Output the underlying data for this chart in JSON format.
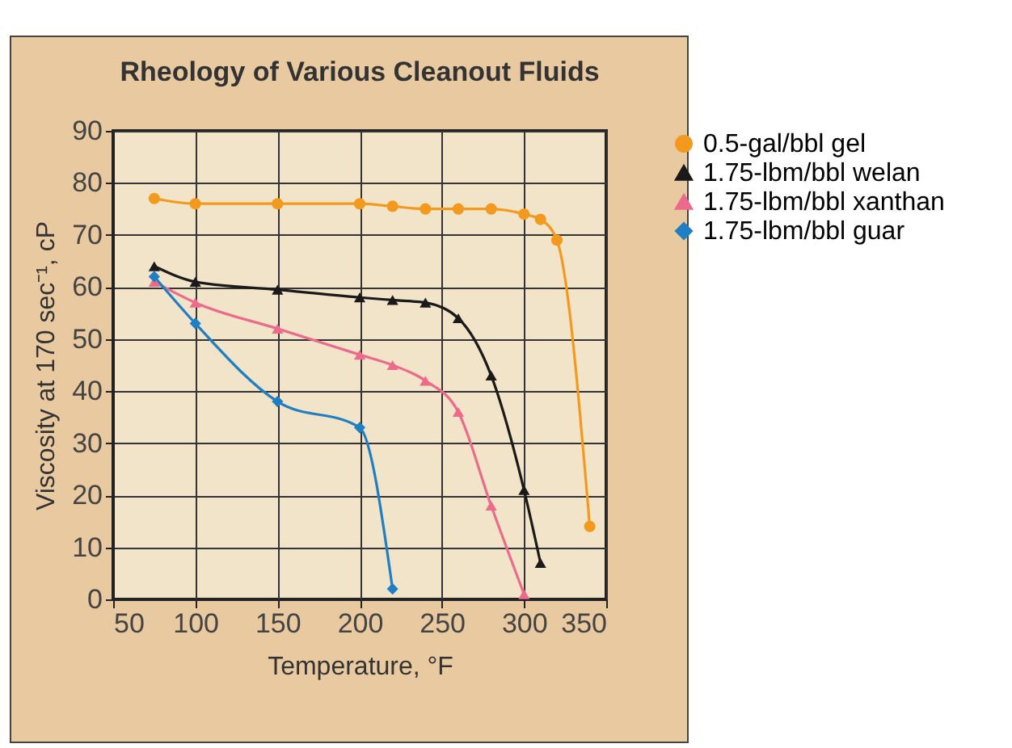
{
  "chart_data": {
    "type": "line",
    "title": "Rheology of Various Cleanout Fluids",
    "xlabel": "Temperature, °F",
    "ylabel": "Viscosity at 170 sec⁻¹, cP",
    "xlim": [
      50,
      350
    ],
    "xticks": [
      50,
      100,
      150,
      200,
      250,
      300,
      350
    ],
    "ylim": [
      0,
      90
    ],
    "yticks": [
      0,
      10,
      20,
      30,
      40,
      50,
      60,
      70,
      80,
      90
    ],
    "grid": true,
    "legend": "right",
    "series": [
      {
        "name": "0.5-gal/bbl gel",
        "color": "#f39a1e",
        "marker": "circle",
        "x": [
          75,
          100,
          150,
          200,
          220,
          240,
          260,
          280,
          300,
          310,
          320,
          340
        ],
        "values": [
          77,
          76,
          76,
          76,
          75.5,
          75,
          75,
          75,
          74,
          73,
          69,
          14
        ]
      },
      {
        "name": "1.75-lbm/bbl welan",
        "color": "#1a1a1a",
        "marker": "triangle",
        "x": [
          75,
          100,
          150,
          200,
          220,
          240,
          260,
          280,
          300,
          310
        ],
        "values": [
          64,
          61,
          59.5,
          58,
          57.5,
          57,
          54,
          43,
          21,
          7
        ]
      },
      {
        "name": "1.75-lbm/bbl xanthan",
        "color": "#ec6a8c",
        "marker": "triangle",
        "x": [
          75,
          100,
          150,
          200,
          220,
          240,
          260,
          280,
          300
        ],
        "values": [
          61,
          57,
          52,
          47,
          45,
          42,
          36,
          18,
          1
        ]
      },
      {
        "name": "1.75-lbm/bbl guar",
        "color": "#1f7fc4",
        "marker": "diamond",
        "x": [
          75,
          100,
          150,
          200,
          220
        ],
        "values": [
          62,
          53,
          38,
          33,
          2
        ]
      }
    ]
  }
}
